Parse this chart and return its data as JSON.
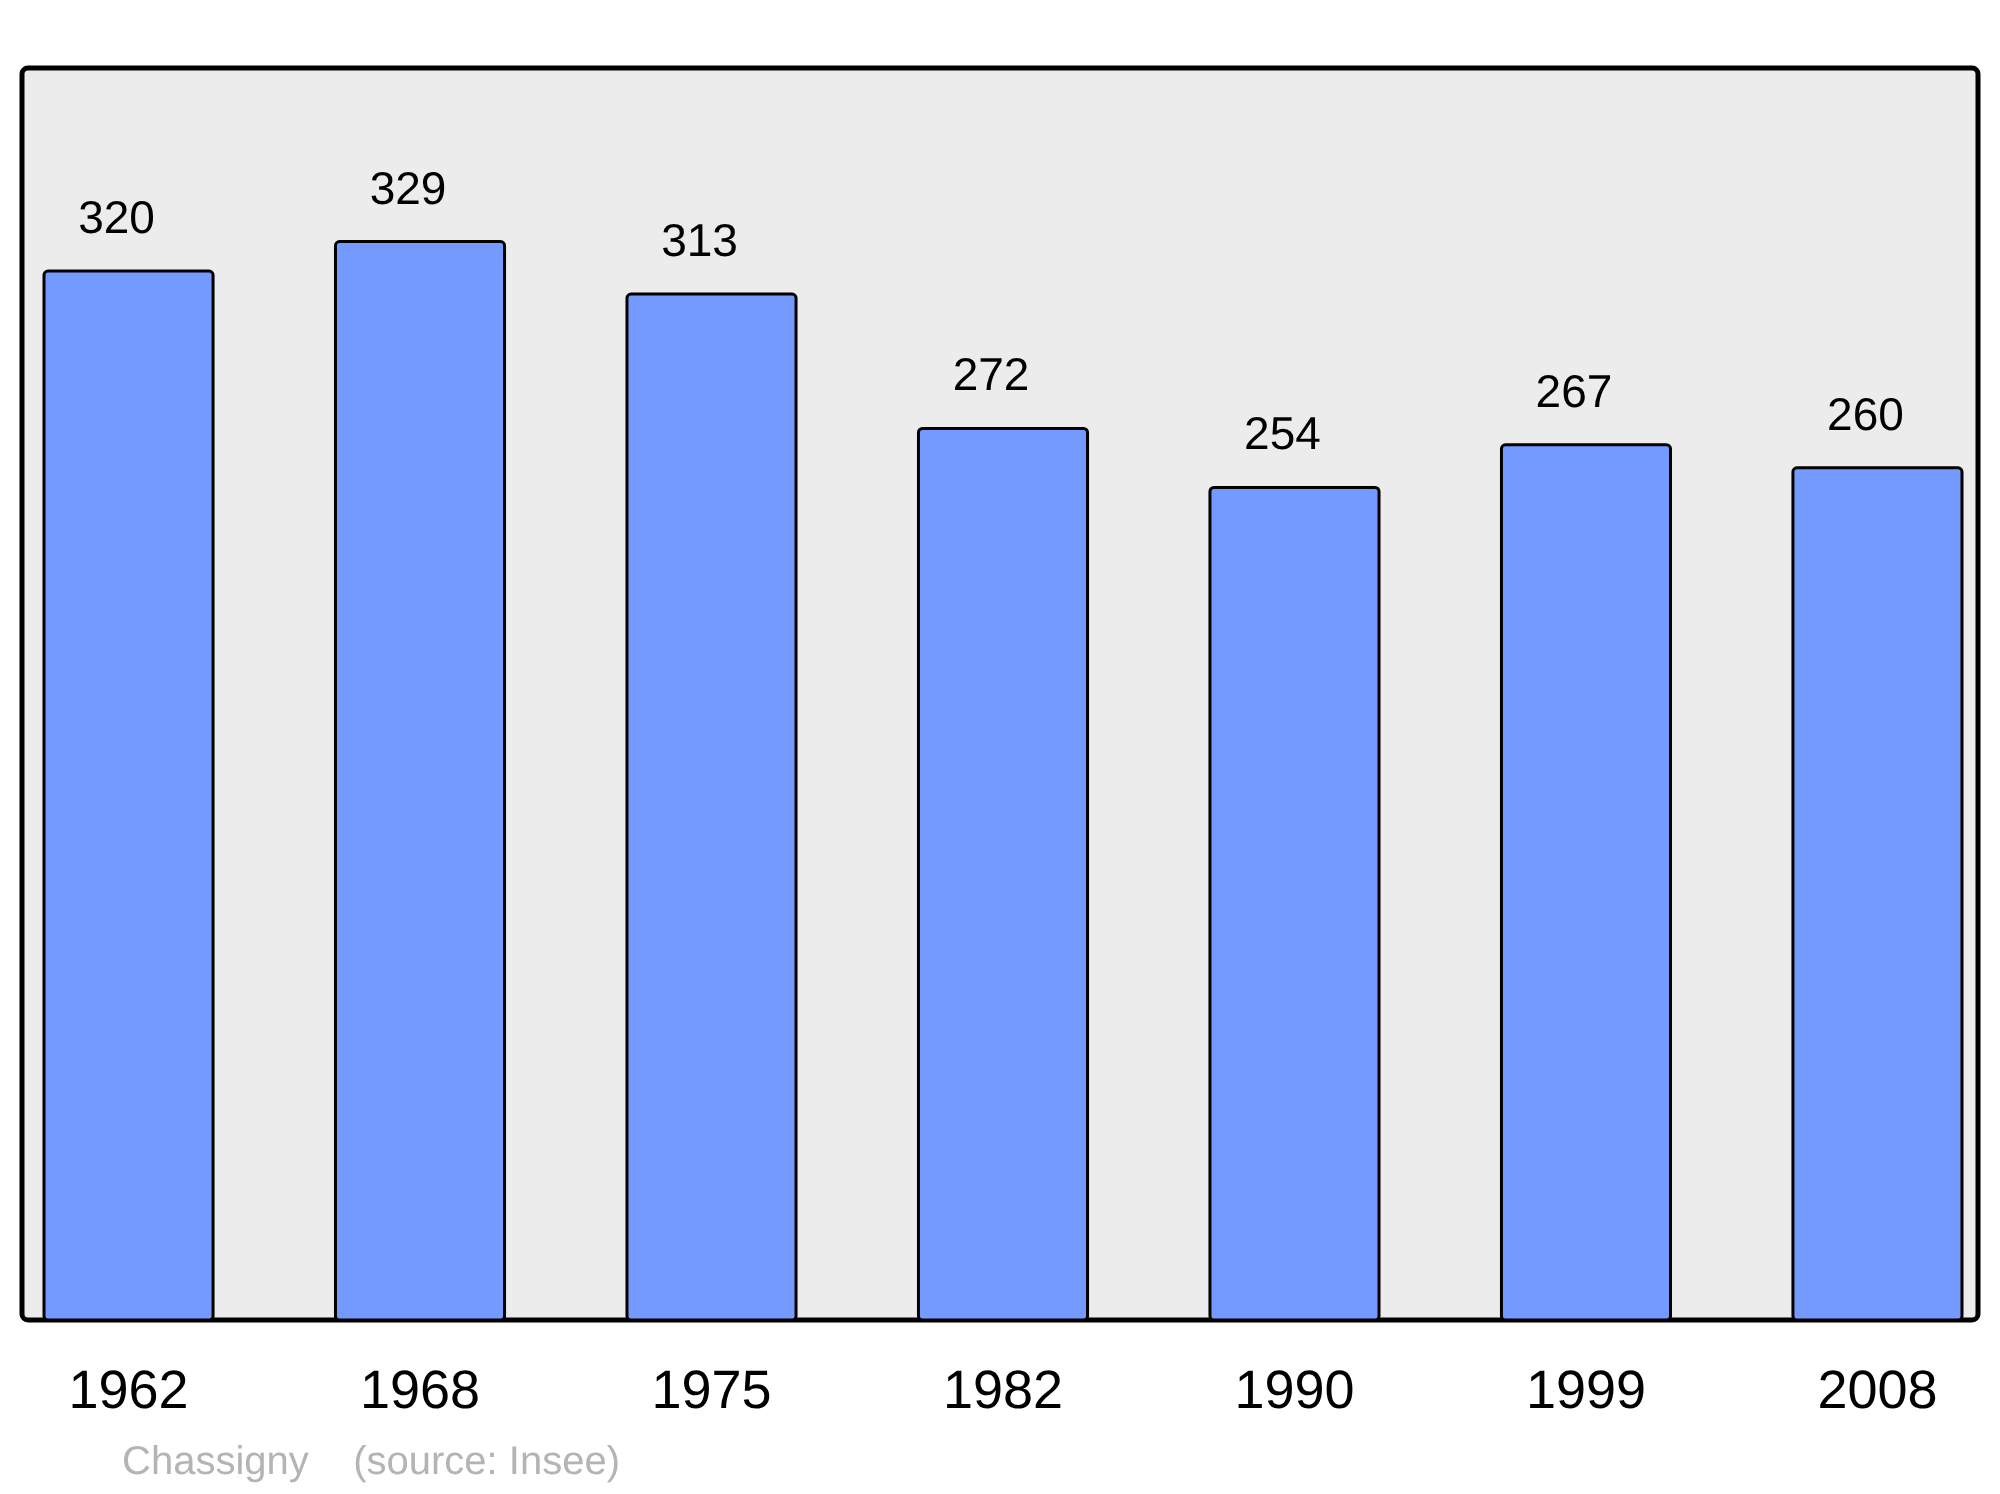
{
  "chart_data": {
    "type": "bar",
    "categories": [
      "1962",
      "1968",
      "1975",
      "1982",
      "1990",
      "1999",
      "2008"
    ],
    "values": [
      320,
      329,
      313,
      272,
      254,
      267,
      260
    ],
    "color": "#7499ff",
    "data_labels": true,
    "annotations": [
      "Chassigny    (source: Insee)"
    ]
  }
}
